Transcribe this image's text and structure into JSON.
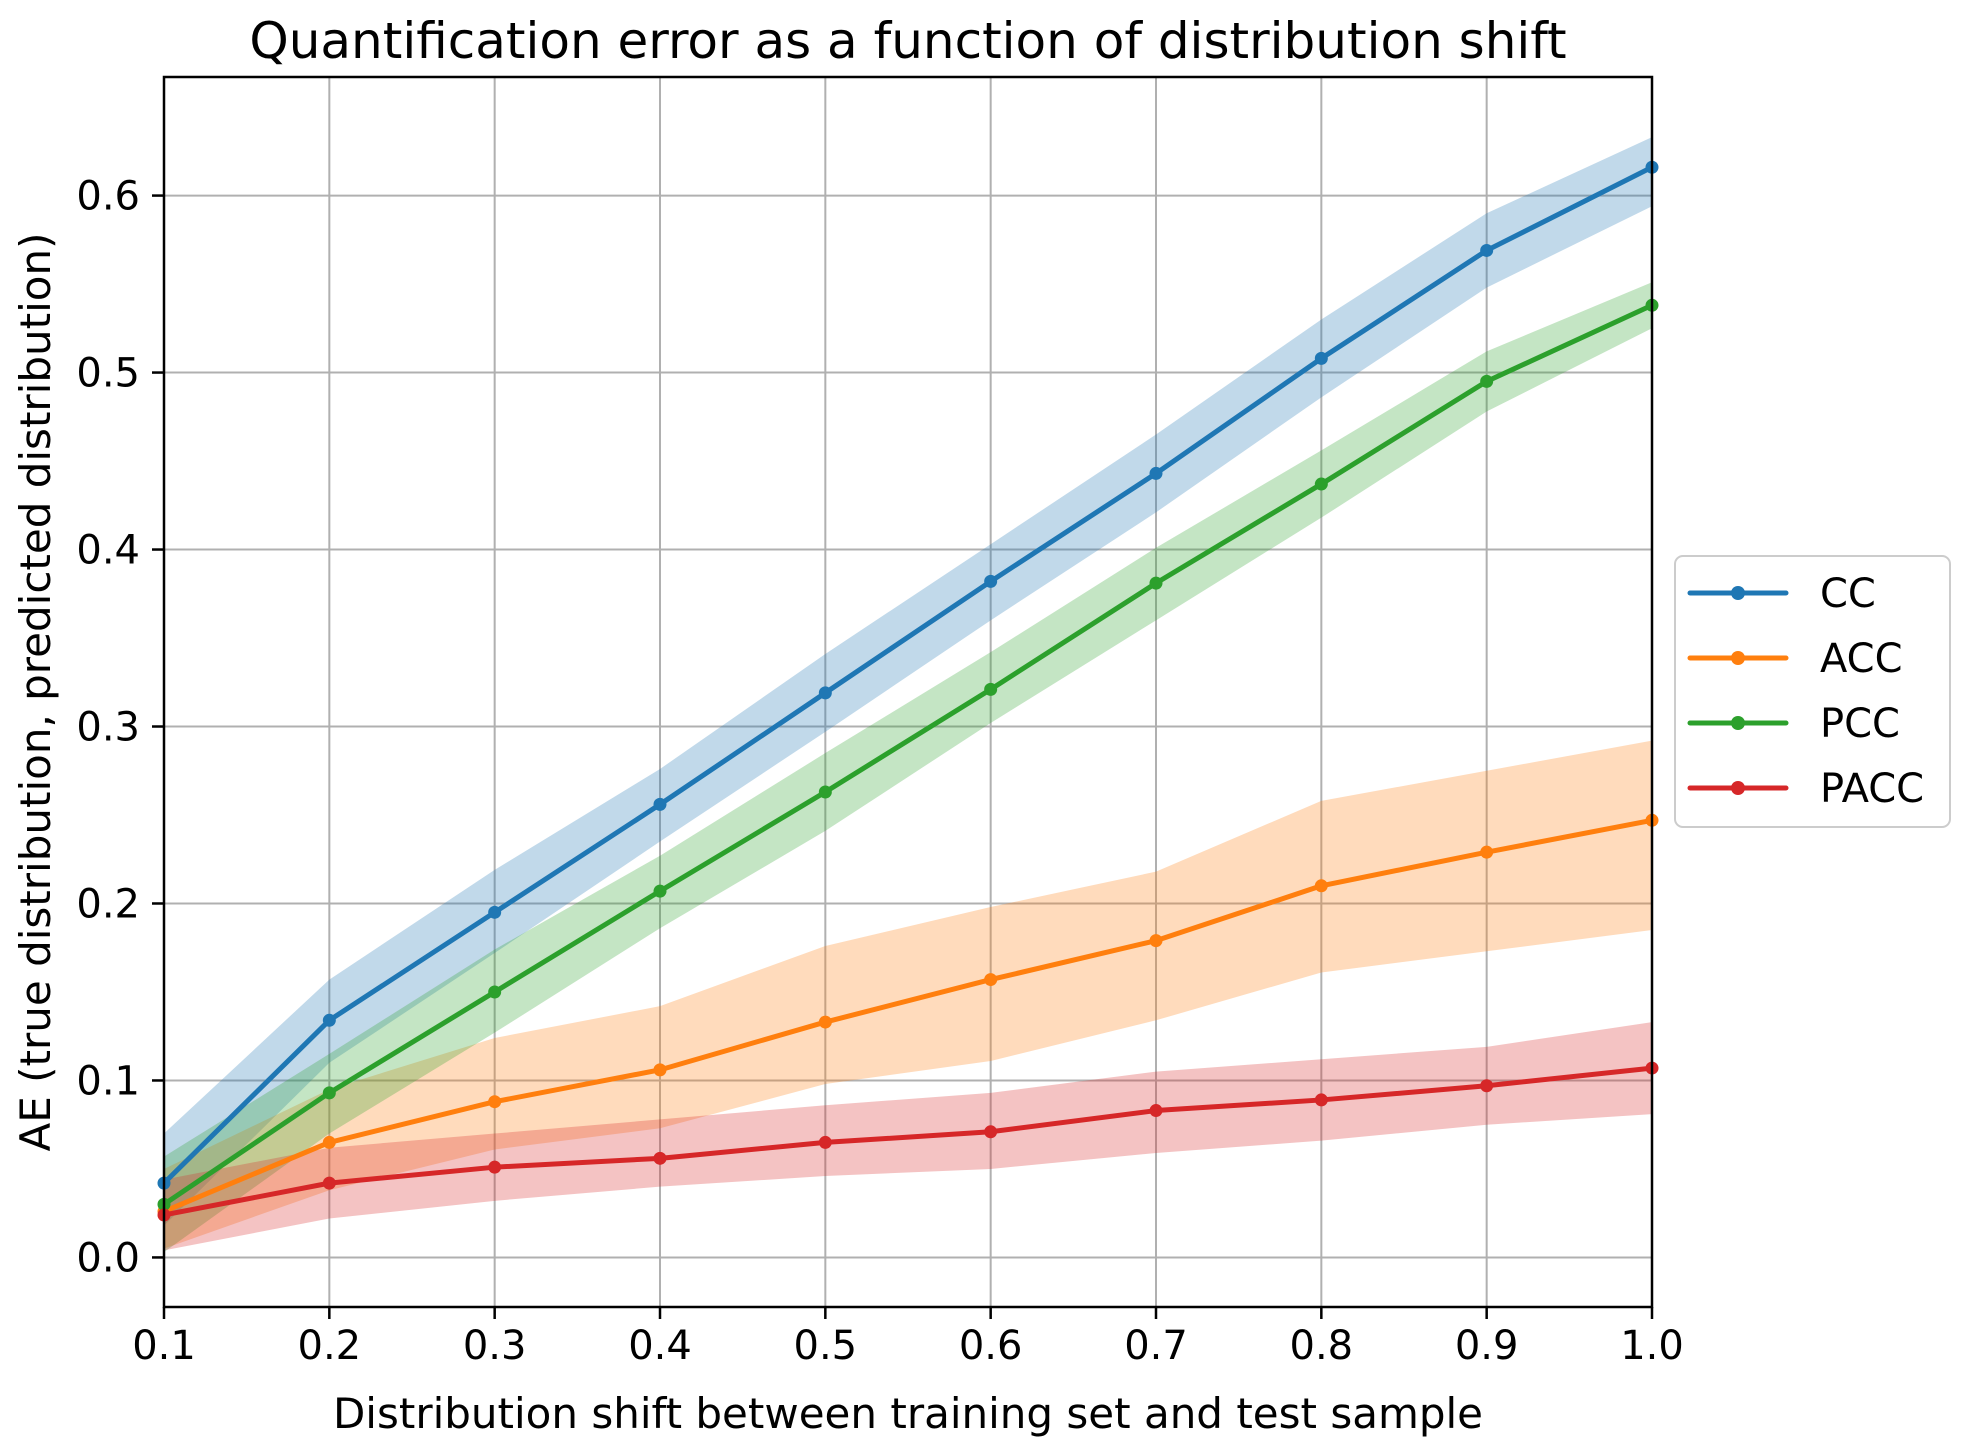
{
  "chart_data": {
    "type": "line",
    "title": "Quantification error as a function of distribution shift",
    "xlabel": "Distribution shift between training set and test sample",
    "ylabel": "AE (true distribution, predicted distribution)",
    "x": [
      0.1,
      0.2,
      0.3,
      0.4,
      0.5,
      0.6,
      0.7,
      0.8,
      0.9,
      1.0
    ],
    "x_tick_labels": [
      "0.1",
      "0.2",
      "0.3",
      "0.4",
      "0.5",
      "0.6",
      "0.7",
      "0.8",
      "0.9",
      "1.0"
    ],
    "y_ticks": [
      0.0,
      0.1,
      0.2,
      0.3,
      0.4,
      0.5,
      0.6
    ],
    "y_tick_labels": [
      "0.0",
      "0.1",
      "0.2",
      "0.3",
      "0.4",
      "0.5",
      "0.6"
    ],
    "xlim": [
      0.1,
      1.0
    ],
    "ylim": [
      -0.028,
      0.667
    ],
    "grid": true,
    "grid_color": "#b0b0b0",
    "spine_color": "#000000",
    "background_color": "#ffffff",
    "legend_position": "right-outside",
    "band_alpha": 0.28,
    "series": [
      {
        "name": "CC",
        "color": "#1f77b4",
        "values": [
          0.042,
          0.134,
          0.195,
          0.256,
          0.319,
          0.382,
          0.443,
          0.508,
          0.569,
          0.616
        ],
        "band_lower": [
          0.018,
          0.11,
          0.172,
          0.235,
          0.297,
          0.36,
          0.421,
          0.486,
          0.548,
          0.594
        ],
        "band_upper": [
          0.07,
          0.157,
          0.219,
          0.276,
          0.341,
          0.403,
          0.465,
          0.53,
          0.59,
          0.633
        ]
      },
      {
        "name": "ACC",
        "color": "#ff7f0e",
        "values": [
          0.026,
          0.065,
          0.088,
          0.106,
          0.133,
          0.157,
          0.179,
          0.21,
          0.229,
          0.247
        ],
        "band_lower": [
          0.005,
          0.038,
          0.061,
          0.073,
          0.098,
          0.111,
          0.134,
          0.161,
          0.173,
          0.185
        ],
        "band_upper": [
          0.05,
          0.095,
          0.124,
          0.142,
          0.176,
          0.198,
          0.218,
          0.258,
          0.275,
          0.292
        ]
      },
      {
        "name": "PCC",
        "color": "#2ca02c",
        "values": [
          0.03,
          0.093,
          0.15,
          0.207,
          0.263,
          0.321,
          0.381,
          0.437,
          0.495,
          0.538
        ],
        "band_lower": [
          0.003,
          0.07,
          0.127,
          0.186,
          0.241,
          0.302,
          0.36,
          0.418,
          0.478,
          0.525
        ],
        "band_upper": [
          0.057,
          0.115,
          0.174,
          0.227,
          0.285,
          0.342,
          0.401,
          0.456,
          0.512,
          0.551
        ]
      },
      {
        "name": "PACC",
        "color": "#d62728",
        "values": [
          0.024,
          0.042,
          0.051,
          0.056,
          0.065,
          0.071,
          0.083,
          0.089,
          0.097,
          0.107
        ],
        "band_lower": [
          0.004,
          0.022,
          0.032,
          0.04,
          0.046,
          0.05,
          0.059,
          0.066,
          0.075,
          0.081
        ],
        "band_upper": [
          0.044,
          0.062,
          0.07,
          0.078,
          0.086,
          0.093,
          0.105,
          0.112,
          0.119,
          0.133
        ]
      }
    ]
  }
}
